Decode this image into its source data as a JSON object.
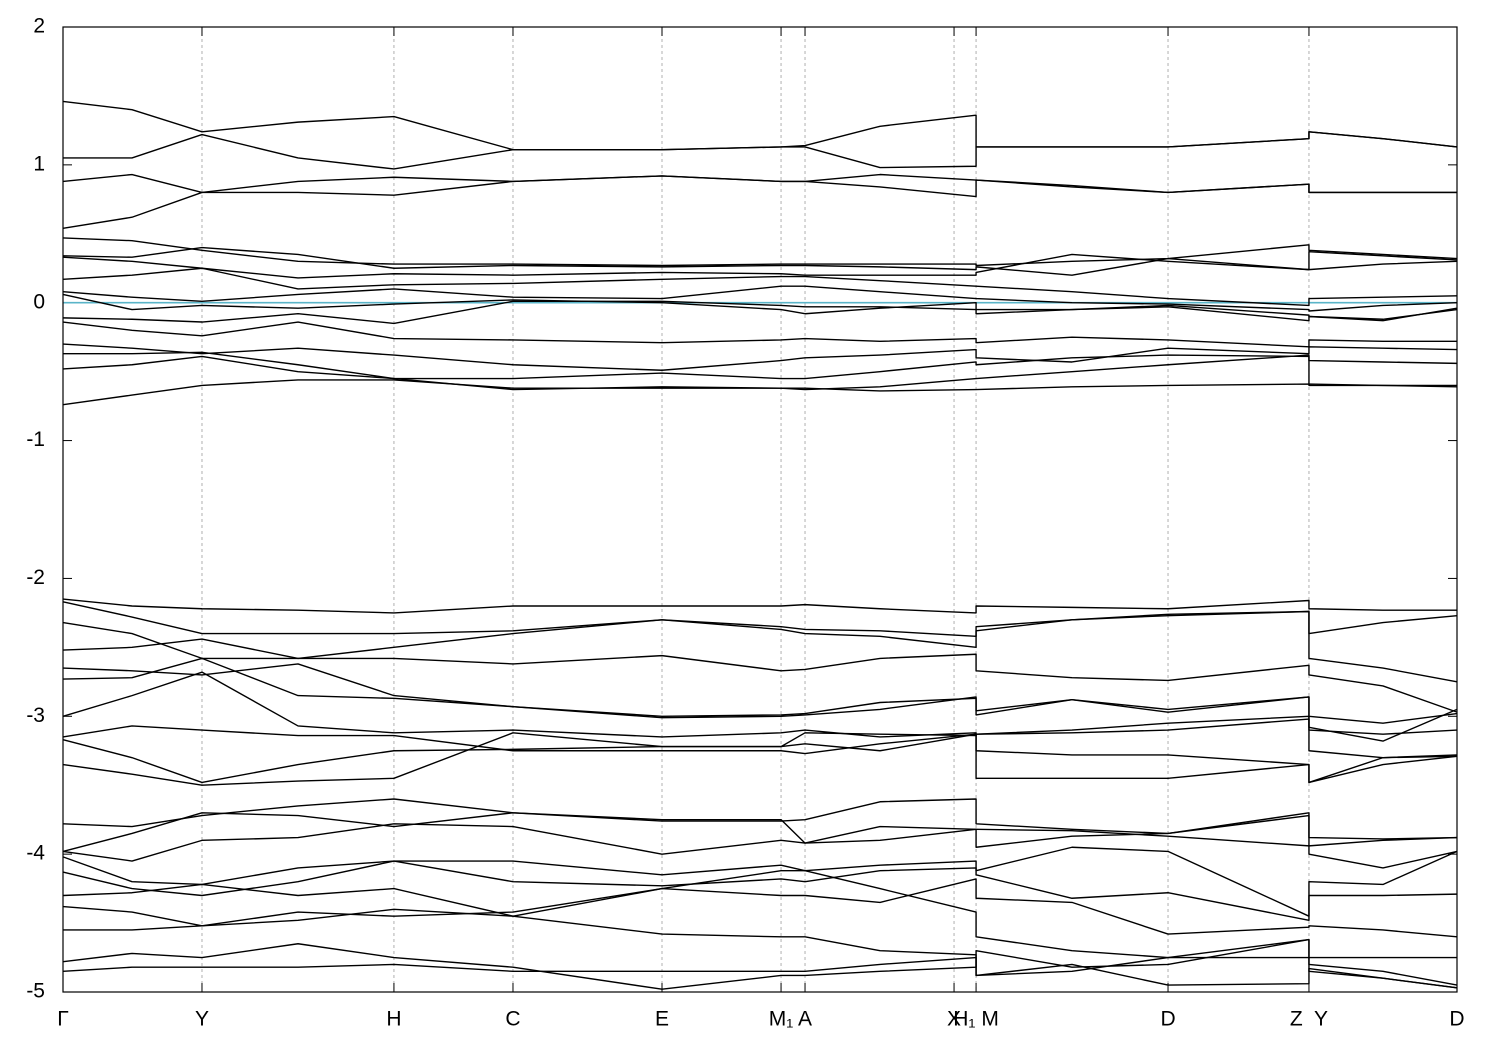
{
  "chart_data": {
    "type": "line",
    "color": "#000000",
    "x": [
      0,
      0.0495,
      0.0997,
      0.1686,
      0.2374,
      0.3228,
      0.4297,
      0.5151,
      0.5323,
      0.5861,
      0.655,
      0.655,
      0.7238,
      0.7927,
      0.8938,
      0.8938,
      0.9469,
      1.0
    ],
    "xlim": [
      0,
      1.0
    ],
    "xticks": [
      {
        "value": 0,
        "label": "Γ"
      },
      {
        "value": 0.0997,
        "label": "Y"
      },
      {
        "value": 0.2374,
        "label": "H"
      },
      {
        "value": 0.3228,
        "label": "C"
      },
      {
        "value": 0.4297,
        "label": "E"
      },
      {
        "value": 0.5151,
        "label": "M₁"
      },
      {
        "value": 0.5323,
        "label": "A"
      },
      {
        "value": 0.6392,
        "label": "X"
      },
      {
        "value": 0.655,
        "label": "H₁ M"
      },
      {
        "value": 0.7927,
        "label": "D"
      },
      {
        "value": 0.8938,
        "label": "Z  Y"
      },
      {
        "value": 1.0,
        "label": "D"
      }
    ],
    "ylim": [
      -5,
      2
    ],
    "yticks": [
      2,
      1,
      0,
      -1,
      -2,
      -3,
      -4,
      -5
    ],
    "grid": "x",
    "fermi_level": {
      "value": 0,
      "color": "#5ab4c8"
    },
    "series": [
      {
        "values": [
          1.46,
          1.4,
          1.24,
          1.31,
          1.35,
          1.11,
          1.11,
          1.13,
          1.14,
          1.28,
          1.36,
          1.13,
          1.13,
          1.13,
          1.19,
          1.24,
          1.19,
          1.13
        ]
      },
      {
        "values": [
          1.05,
          1.05,
          1.22,
          1.05,
          0.97,
          1.11,
          1.11,
          1.13,
          1.13,
          0.98,
          0.99,
          1.13,
          1.13,
          1.13,
          1.19,
          1.24,
          1.19,
          1.13
        ]
      },
      {
        "values": [
          0.88,
          0.93,
          0.8,
          0.88,
          0.91,
          0.88,
          0.92,
          0.88,
          0.88,
          0.93,
          0.89,
          0.89,
          0.85,
          0.8,
          0.86,
          0.8,
          0.8,
          0.8
        ]
      },
      {
        "values": [
          0.54,
          0.62,
          0.8,
          0.8,
          0.78,
          0.88,
          0.92,
          0.88,
          0.88,
          0.84,
          0.77,
          0.89,
          0.84,
          0.8,
          0.86,
          0.8,
          0.8,
          0.8
        ]
      },
      {
        "values": [
          0.47,
          0.45,
          0.38,
          0.3,
          0.28,
          0.28,
          0.27,
          0.28,
          0.28,
          0.28,
          0.28,
          0.27,
          0.3,
          0.32,
          0.42,
          0.38,
          0.35,
          0.32
        ]
      },
      {
        "values": [
          0.34,
          0.33,
          0.4,
          0.35,
          0.25,
          0.27,
          0.26,
          0.27,
          0.27,
          0.26,
          0.24,
          0.26,
          0.2,
          0.32,
          0.24,
          0.24,
          0.28,
          0.3
        ]
      },
      {
        "values": [
          0.33,
          0.3,
          0.25,
          0.18,
          0.21,
          0.2,
          0.22,
          0.21,
          0.2,
          0.2,
          0.2,
          0.22,
          0.35,
          0.3,
          0.24,
          0.37,
          0.34,
          0.31
        ]
      },
      {
        "values": [
          0.17,
          0.2,
          0.25,
          0.1,
          0.13,
          0.14,
          0.17,
          0.19,
          0.19,
          0.16,
          0.12,
          0.12,
          0.08,
          0.03,
          -0.02,
          0.03,
          0.04,
          0.05
        ]
      },
      {
        "values": [
          0.08,
          0.04,
          0.01,
          0.06,
          0.1,
          0.04,
          0.03,
          0.12,
          0.12,
          0.08,
          0.03,
          0.03,
          0.0,
          -0.01,
          -0.05,
          -0.06,
          -0.02,
          0.0
        ]
      },
      {
        "values": [
          0.06,
          -0.05,
          -0.02,
          -0.04,
          -0.01,
          0.02,
          0.0,
          -0.05,
          -0.08,
          -0.04,
          0.0,
          -0.08,
          -0.05,
          -0.03,
          -0.13,
          -0.1,
          -0.12,
          -0.05
        ]
      },
      {
        "values": [
          -0.11,
          -0.12,
          -0.14,
          -0.08,
          -0.15,
          0.01,
          0.01,
          -0.02,
          -0.03,
          -0.03,
          -0.05,
          -0.05,
          -0.05,
          -0.02,
          -0.09,
          -0.1,
          -0.13,
          -0.04
        ]
      },
      {
        "values": [
          -0.14,
          -0.2,
          -0.24,
          -0.14,
          -0.26,
          -0.27,
          -0.29,
          -0.27,
          -0.26,
          -0.28,
          -0.26,
          -0.29,
          -0.25,
          -0.27,
          -0.32,
          -0.27,
          -0.28,
          -0.28
        ]
      },
      {
        "values": [
          -0.3,
          -0.33,
          -0.37,
          -0.33,
          -0.38,
          -0.45,
          -0.49,
          -0.42,
          -0.4,
          -0.38,
          -0.34,
          -0.4,
          -0.43,
          -0.33,
          -0.37,
          -0.32,
          -0.33,
          -0.34
        ]
      },
      {
        "values": [
          -0.37,
          -0.37,
          -0.36,
          -0.45,
          -0.55,
          -0.55,
          -0.51,
          -0.55,
          -0.55,
          -0.5,
          -0.43,
          -0.45,
          -0.4,
          -0.38,
          -0.39,
          -0.42,
          -0.43,
          -0.44
        ]
      },
      {
        "values": [
          -0.48,
          -0.45,
          -0.39,
          -0.5,
          -0.55,
          -0.63,
          -0.61,
          -0.62,
          -0.63,
          -0.61,
          -0.55,
          -0.55,
          -0.5,
          -0.45,
          -0.38,
          -0.6,
          -0.6,
          -0.6
        ]
      },
      {
        "values": [
          -0.74,
          -0.67,
          -0.6,
          -0.56,
          -0.56,
          -0.62,
          -0.62,
          -0.62,
          -0.62,
          -0.64,
          -0.63,
          -0.63,
          -0.61,
          -0.6,
          -0.59,
          -0.59,
          -0.6,
          -0.61
        ]
      },
      {
        "values": [
          -2.15,
          -2.2,
          -2.22,
          -2.23,
          -2.25,
          -2.2,
          -2.2,
          -2.2,
          -2.19,
          -2.22,
          -2.25,
          -2.2,
          -2.21,
          -2.22,
          -2.16,
          -2.22,
          -2.23,
          -2.23
        ]
      },
      {
        "values": [
          -2.17,
          -2.28,
          -2.4,
          -2.4,
          -2.4,
          -2.38,
          -2.3,
          -2.35,
          -2.37,
          -2.38,
          -2.42,
          -2.35,
          -2.3,
          -2.26,
          -2.24,
          -2.4,
          -2.32,
          -2.27
        ]
      },
      {
        "values": [
          -2.32,
          -2.4,
          -2.58,
          -2.58,
          -2.5,
          -2.4,
          -2.3,
          -2.37,
          -2.4,
          -2.42,
          -2.5,
          -2.38,
          -2.3,
          -2.27,
          -2.24,
          -2.58,
          -2.65,
          -2.75
        ]
      },
      {
        "values": [
          -2.52,
          -2.5,
          -2.44,
          -2.58,
          -2.58,
          -2.62,
          -2.56,
          -2.67,
          -2.66,
          -2.58,
          -2.55,
          -2.67,
          -2.72,
          -2.74,
          -2.63,
          -2.7,
          -2.78,
          -2.97
        ]
      },
      {
        "values": [
          -2.65,
          -2.67,
          -2.7,
          -2.62,
          -2.85,
          -2.93,
          -3.01,
          -3.0,
          -2.99,
          -2.95,
          -2.86,
          -2.99,
          -2.88,
          -2.95,
          -2.86,
          -3.0,
          -3.05,
          -2.98
        ]
      },
      {
        "values": [
          -2.73,
          -2.72,
          -2.58,
          -2.85,
          -2.87,
          -2.93,
          -3.0,
          -2.99,
          -2.98,
          -2.9,
          -2.87,
          -2.96,
          -2.88,
          -2.97,
          -2.86,
          -3.08,
          -3.18,
          -2.95
        ]
      },
      {
        "values": [
          -3.0,
          -2.85,
          -2.68,
          -3.07,
          -3.12,
          -3.1,
          -3.15,
          -3.12,
          -3.1,
          -3.15,
          -3.12,
          -3.13,
          -3.1,
          -3.05,
          -3.0,
          -3.25,
          -3.3,
          -3.28
        ]
      },
      {
        "values": [
          -3.15,
          -3.07,
          -3.1,
          -3.14,
          -3.14,
          -3.25,
          -3.25,
          -3.25,
          -3.27,
          -3.2,
          -3.13,
          -3.25,
          -3.28,
          -3.28,
          -3.35,
          -3.48,
          -3.35,
          -3.29
        ]
      },
      {
        "values": [
          -3.35,
          -3.42,
          -3.5,
          -3.47,
          -3.45,
          -3.12,
          -3.22,
          -3.22,
          -3.12,
          -3.13,
          -3.14,
          -3.13,
          -3.12,
          -3.1,
          -3.02,
          -3.1,
          -3.13,
          -3.1
        ]
      },
      {
        "values": [
          -3.17,
          -3.3,
          -3.48,
          -3.35,
          -3.25,
          -3.24,
          -3.22,
          -3.22,
          -3.2,
          -3.25,
          -3.13,
          -3.45,
          -3.45,
          -3.45,
          -3.35,
          -3.48,
          -3.3,
          -3.29
        ]
      },
      {
        "values": [
          -3.78,
          -3.8,
          -3.72,
          -3.65,
          -3.6,
          -3.7,
          -3.76,
          -3.76,
          -3.75,
          -3.62,
          -3.6,
          -3.78,
          -3.82,
          -3.85,
          -3.72,
          -3.88,
          -3.89,
          -3.88
        ]
      },
      {
        "values": [
          -3.98,
          -3.85,
          -3.7,
          -3.72,
          -3.8,
          -3.7,
          -3.75,
          -3.75,
          -3.92,
          -3.8,
          -3.82,
          -3.82,
          -3.83,
          -3.87,
          -3.94,
          -3.94,
          -3.9,
          -3.88
        ]
      },
      {
        "values": [
          -3.98,
          -4.05,
          -3.9,
          -3.88,
          -3.78,
          -3.8,
          -4.0,
          -3.9,
          -3.92,
          -3.9,
          -3.82,
          -3.95,
          -3.87,
          -3.85,
          -3.7,
          -4.0,
          -4.1,
          -3.98
        ]
      },
      {
        "values": [
          -4.02,
          -4.2,
          -4.22,
          -4.1,
          -4.05,
          -4.05,
          -4.15,
          -4.08,
          -4.12,
          -4.08,
          -4.05,
          -4.12,
          -3.95,
          -3.98,
          -4.45,
          -4.2,
          -4.22,
          -3.98
        ]
      },
      {
        "values": [
          -4.13,
          -4.25,
          -4.3,
          -4.2,
          -4.05,
          -4.2,
          -4.23,
          -4.18,
          -4.2,
          -4.12,
          -4.1,
          -4.15,
          -4.32,
          -4.28,
          -4.48,
          -4.3,
          -4.3,
          -4.29
        ]
      },
      {
        "values": [
          -4.3,
          -4.28,
          -4.22,
          -4.3,
          -4.25,
          -4.45,
          -4.25,
          -4.3,
          -4.3,
          -4.35,
          -4.18,
          -4.32,
          -4.35,
          -4.58,
          -4.53,
          -4.52,
          -4.55,
          -4.6
        ]
      },
      {
        "values": [
          -4.38,
          -4.42,
          -4.52,
          -4.42,
          -4.45,
          -4.42,
          -4.25,
          -4.12,
          -4.12,
          -4.25,
          -4.42,
          -4.6,
          -4.7,
          -4.75,
          -4.62,
          -4.75,
          -4.75,
          -4.75
        ]
      },
      {
        "values": [
          -4.55,
          -4.55,
          -4.52,
          -4.48,
          -4.4,
          -4.45,
          -4.58,
          -4.6,
          -4.6,
          -4.7,
          -4.73,
          -4.88,
          -4.8,
          -4.95,
          -4.94,
          -4.83,
          -4.9,
          -4.97
        ]
      },
      {
        "values": [
          -4.78,
          -4.72,
          -4.75,
          -4.65,
          -4.75,
          -4.82,
          -4.98,
          -4.88,
          -4.88,
          -4.85,
          -4.82,
          -4.7,
          -4.82,
          -4.8,
          -4.62,
          -4.85,
          -4.9,
          -4.97
        ]
      },
      {
        "values": [
          -4.85,
          -4.82,
          -4.82,
          -4.82,
          -4.8,
          -4.85,
          -4.85,
          -4.85,
          -4.85,
          -4.8,
          -4.75,
          -4.88,
          -4.85,
          -4.75,
          -4.75,
          -4.8,
          -4.85,
          -4.95
        ]
      }
    ]
  }
}
